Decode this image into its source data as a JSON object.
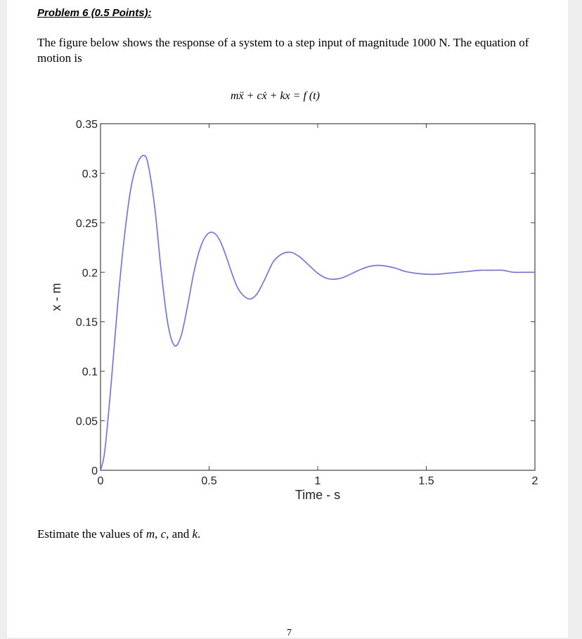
{
  "problem": {
    "heading": "Problem 6  (0.5 Points):",
    "paragraph": "The figure below shows the response of a system to a step input of magnitude 1000 N. The equation of motion is",
    "equation": "mẍ + cẋ + kx = f (t)",
    "question_prefix": "Estimate the values of ",
    "question_vars": [
      "m",
      "c",
      "k"
    ],
    "question_sep1": ", ",
    "question_sep2": ", and ",
    "question_suffix": ".",
    "page_number": "7"
  },
  "chart_data": {
    "type": "line",
    "title": "",
    "xlabel": "Time - s",
    "ylabel": "x - m",
    "xlim": [
      0,
      2
    ],
    "ylim": [
      0,
      0.35
    ],
    "xticks": [
      0,
      0.5,
      1,
      1.5,
      2
    ],
    "xtick_labels": [
      "0",
      "0.5",
      "1",
      "1.5",
      "2"
    ],
    "yticks": [
      0,
      0.05,
      0.1,
      0.15,
      0.2,
      0.25,
      0.3,
      0.35
    ],
    "ytick_labels": [
      "0",
      "0.05",
      "0.1",
      "0.15",
      "0.2",
      "0.25",
      "0.3",
      "0.35"
    ],
    "grid": false,
    "series": [
      {
        "color": "#6b6bff",
        "x": [
          0,
          0.02,
          0.05,
          0.08,
          0.11,
          0.14,
          0.17,
          0.2,
          0.22,
          0.25,
          0.28,
          0.31,
          0.34,
          0.37,
          0.4,
          0.43,
          0.46,
          0.49,
          0.52,
          0.55,
          0.58,
          0.6,
          0.63,
          0.66,
          0.69,
          0.72,
          0.75,
          0.78,
          0.8,
          0.84,
          0.88,
          0.92,
          0.96,
          1.0,
          1.04,
          1.08,
          1.12,
          1.16,
          1.2,
          1.24,
          1.28,
          1.32,
          1.36,
          1.4,
          1.45,
          1.5,
          1.55,
          1.6,
          1.65,
          1.7,
          1.75,
          1.8,
          1.85,
          1.9,
          1.95,
          2.0
        ],
        "y": [
          0,
          0.02,
          0.09,
          0.17,
          0.236,
          0.285,
          0.31,
          0.318,
          0.308,
          0.265,
          0.2,
          0.148,
          0.126,
          0.135,
          0.165,
          0.2,
          0.225,
          0.238,
          0.24,
          0.232,
          0.215,
          0.202,
          0.185,
          0.176,
          0.173,
          0.178,
          0.19,
          0.204,
          0.212,
          0.219,
          0.22,
          0.215,
          0.207,
          0.199,
          0.194,
          0.193,
          0.195,
          0.199,
          0.203,
          0.206,
          0.207,
          0.206,
          0.204,
          0.201,
          0.199,
          0.198,
          0.198,
          0.199,
          0.2,
          0.201,
          0.202,
          0.202,
          0.202,
          0.2,
          0.2,
          0.2
        ]
      }
    ]
  }
}
